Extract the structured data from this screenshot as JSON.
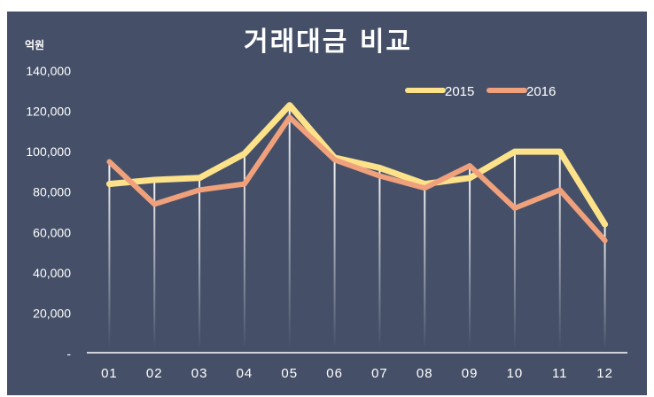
{
  "chart_data": {
    "type": "line",
    "title": "거래대금 비교",
    "ylabel": "억원",
    "xlabel": "",
    "categories": [
      "01",
      "02",
      "03",
      "04",
      "05",
      "06",
      "07",
      "08",
      "09",
      "10",
      "11",
      "12"
    ],
    "y_tick_labels": [
      "-",
      "20,000",
      "40,000",
      "60,000",
      "80,000",
      "100,000",
      "120,000",
      "140,000"
    ],
    "ylim": [
      0,
      140000
    ],
    "legend_position": "top-right",
    "grid": false,
    "series": [
      {
        "name": "2015",
        "color": "#fde28a",
        "values": [
          84000,
          86000,
          87000,
          99000,
          123000,
          97000,
          92000,
          84000,
          87000,
          100000,
          100000,
          64000
        ]
      },
      {
        "name": "2016",
        "color": "#f0a17c",
        "values": [
          95000,
          74000,
          81000,
          84000,
          117000,
          96000,
          88000,
          82000,
          93000,
          72000,
          81000,
          56000
        ]
      }
    ]
  }
}
